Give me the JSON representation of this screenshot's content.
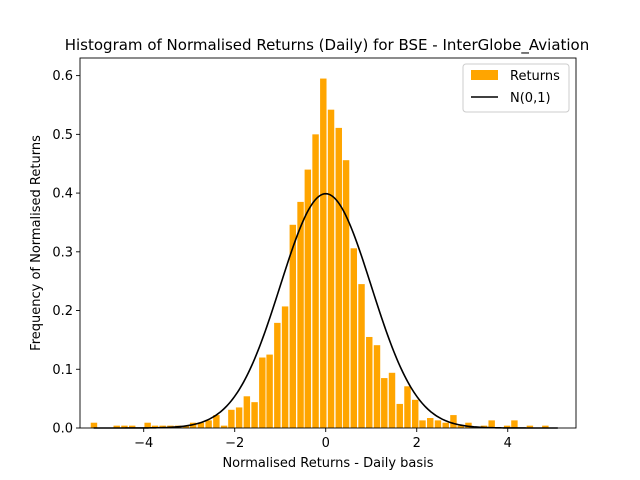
{
  "chart_data": {
    "type": "bar",
    "title": "Histogram of Normalised Returns (Daily) for BSE - InterGlobe_Aviation",
    "xlabel": "Normalised Returns - Daily basis",
    "ylabel": "Frequency of Normalised Returns",
    "xlim": [
      -5.4,
      5.5
    ],
    "ylim": [
      0,
      0.63
    ],
    "xticks": [
      -4,
      -2,
      0,
      2,
      4
    ],
    "xtick_labels": [
      "−4",
      "−2",
      "0",
      "2",
      "4"
    ],
    "yticks": [
      0.0,
      0.1,
      0.2,
      0.3,
      0.4,
      0.5,
      0.6
    ],
    "ytick_labels": [
      "0.0",
      "0.1",
      "0.2",
      "0.3",
      "0.4",
      "0.5",
      "0.6"
    ],
    "grid": false,
    "legend_position": "top-right",
    "colors": {
      "histogram": "#ffa500",
      "curve": "#000000"
    },
    "series": [
      {
        "name": "Returns",
        "kind": "histogram",
        "bin_width": 0.168,
        "bins": [
          [
            -5.08,
            0.009
          ],
          [
            -4.58,
            0.004
          ],
          [
            -4.41,
            0.004
          ],
          [
            -4.24,
            0.004
          ],
          [
            -3.9,
            0.009
          ],
          [
            -3.74,
            0.004
          ],
          [
            -3.57,
            0.004
          ],
          [
            -3.4,
            0.004
          ],
          [
            -3.23,
            0.004
          ],
          [
            -3.06,
            0.004
          ],
          [
            -2.9,
            0.009
          ],
          [
            -2.73,
            0.009
          ],
          [
            -2.56,
            0.013
          ],
          [
            -2.39,
            0.022
          ],
          [
            -2.22,
            0.004
          ],
          [
            -2.06,
            0.031
          ],
          [
            -1.89,
            0.035
          ],
          [
            -1.72,
            0.054
          ],
          [
            -1.55,
            0.044
          ],
          [
            -1.38,
            0.12
          ],
          [
            -1.22,
            0.125
          ],
          [
            -1.05,
            0.179
          ],
          [
            -0.88,
            0.207
          ],
          [
            -0.71,
            0.346
          ],
          [
            -0.54,
            0.385
          ],
          [
            -0.38,
            0.44
          ],
          [
            -0.21,
            0.5
          ],
          [
            -0.04,
            0.595
          ],
          [
            0.13,
            0.542
          ],
          [
            0.3,
            0.511
          ],
          [
            0.46,
            0.456
          ],
          [
            0.63,
            0.306
          ],
          [
            0.8,
            0.245
          ],
          [
            0.97,
            0.155
          ],
          [
            1.14,
            0.141
          ],
          [
            1.3,
            0.085
          ],
          [
            1.47,
            0.094
          ],
          [
            1.64,
            0.041
          ],
          [
            1.81,
            0.071
          ],
          [
            1.98,
            0.048
          ],
          [
            2.14,
            0.013
          ],
          [
            2.31,
            0.017
          ],
          [
            2.48,
            0.013
          ],
          [
            2.65,
            0.009
          ],
          [
            2.82,
            0.022
          ],
          [
            2.98,
            0.004
          ],
          [
            3.15,
            0.009
          ],
          [
            3.49,
            0.004
          ],
          [
            3.66,
            0.013
          ],
          [
            4.0,
            0.004
          ],
          [
            4.16,
            0.013
          ],
          [
            4.5,
            0.004
          ],
          [
            4.84,
            0.004
          ]
        ]
      },
      {
        "name": "N(0,1)",
        "kind": "line",
        "function": "standard_normal_pdf",
        "x_range": [
          -5.1,
          5.1
        ]
      }
    ]
  }
}
